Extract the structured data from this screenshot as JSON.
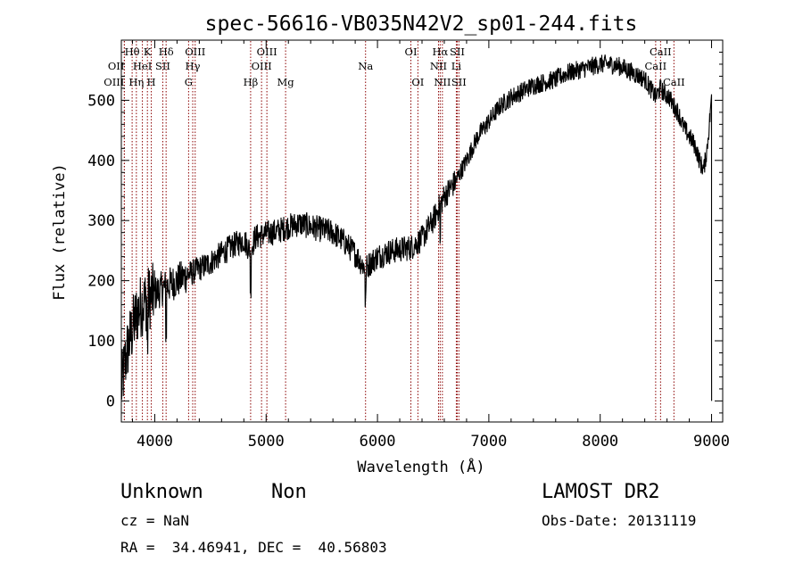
{
  "chart_data": {
    "type": "line",
    "title": "spec-56616-VB035N42V2_sp01-244.fits",
    "xlabel": "Wavelength (Å)",
    "ylabel": "Flux (relative)",
    "xlim": [
      3700,
      9100
    ],
    "ylim": [
      -35,
      600
    ],
    "xticks": [
      4000,
      5000,
      6000,
      7000,
      8000,
      9000
    ],
    "yticks": [
      0,
      100,
      200,
      300,
      400,
      500
    ],
    "grid": false,
    "line_color": "#000000",
    "marker_color": "#8b0000",
    "spectrum_anchors": {
      "x": [
        3700,
        3730,
        3760,
        3800,
        3840,
        3880,
        3930,
        3980,
        4050,
        4100,
        4200,
        4300,
        4400,
        4500,
        4600,
        4700,
        4800,
        4860,
        4900,
        5000,
        5100,
        5200,
        5300,
        5400,
        5500,
        5600,
        5700,
        5800,
        5890,
        5950,
        6000,
        6100,
        6200,
        6300,
        6400,
        6500,
        6560,
        6600,
        6700,
        6800,
        6900,
        7000,
        7100,
        7200,
        7300,
        7400,
        7500,
        7600,
        7700,
        7800,
        7900,
        8000,
        8100,
        8200,
        8300,
        8400,
        8450,
        8500,
        8540,
        8580,
        8620,
        8660,
        8700,
        8750,
        8800,
        8850,
        8900,
        8930,
        8960,
        8990,
        9000
      ],
      "y": [
        20,
        60,
        90,
        120,
        145,
        160,
        170,
        175,
        185,
        190,
        200,
        210,
        220,
        230,
        245,
        258,
        268,
        250,
        272,
        278,
        282,
        290,
        295,
        290,
        285,
        280,
        265,
        245,
        220,
        232,
        240,
        248,
        252,
        255,
        270,
        300,
        325,
        340,
        365,
        400,
        440,
        465,
        490,
        505,
        515,
        525,
        530,
        535,
        545,
        550,
        555,
        560,
        560,
        555,
        545,
        535,
        520,
        505,
        520,
        510,
        505,
        490,
        480,
        455,
        440,
        425,
        395,
        385,
        420,
        480,
        510
      ]
    },
    "lines": [
      {
        "label": "OII",
        "x": 3727,
        "row": 2,
        "align": "end"
      },
      {
        "label": "OIII",
        "x": 3727,
        "row": 3,
        "align": "end"
      },
      {
        "label": "Hθ",
        "x": 3797,
        "row": 1,
        "align": "middle"
      },
      {
        "label": "HeI",
        "x": 3889,
        "row": 2,
        "align": "middle"
      },
      {
        "label": "Hη",
        "x": 3835,
        "row": 3,
        "align": "middle"
      },
      {
        "label": "K",
        "x": 3934,
        "row": 1,
        "align": "middle"
      },
      {
        "label": "H",
        "x": 3969,
        "row": 3,
        "align": "middle"
      },
      {
        "label": "SII",
        "x": 4072,
        "row": 2,
        "align": "middle"
      },
      {
        "label": "Hδ",
        "x": 4102,
        "row": 1,
        "align": "middle"
      },
      {
        "label": "OIII",
        "x": 4363,
        "row": 1,
        "align": "middle"
      },
      {
        "label": "Hγ",
        "x": 4341,
        "row": 2,
        "align": "middle"
      },
      {
        "label": "G",
        "x": 4304,
        "row": 3,
        "align": "middle"
      },
      {
        "label": "Hβ",
        "x": 4861,
        "row": 3,
        "align": "middle"
      },
      {
        "label": "OIII",
        "x": 4959,
        "row": 2,
        "align": "middle"
      },
      {
        "label": "OIII",
        "x": 5007,
        "row": 1,
        "align": "middle"
      },
      {
        "label": "Mg",
        "x": 5175,
        "row": 3,
        "align": "middle"
      },
      {
        "label": "Na",
        "x": 5893,
        "row": 2,
        "align": "middle"
      },
      {
        "label": "OI",
        "x": 6300,
        "row": 1,
        "align": "middle"
      },
      {
        "label": "OI",
        "x": 6363,
        "row": 3,
        "align": "middle"
      },
      {
        "label": "NII",
        "x": 6548,
        "row": 2,
        "align": "middle"
      },
      {
        "label": "Hα",
        "x": 6563,
        "row": 1,
        "align": "middle"
      },
      {
        "label": "NII",
        "x": 6583,
        "row": 3,
        "align": "middle"
      },
      {
        "label": "Li",
        "x": 6708,
        "row": 2,
        "align": "middle"
      },
      {
        "label": "SII",
        "x": 6716,
        "row": 1,
        "align": "middle"
      },
      {
        "label": "SII",
        "x": 6731,
        "row": 3,
        "align": "middle"
      },
      {
        "label": "CaII",
        "x": 8498,
        "row": 2,
        "align": "middle"
      },
      {
        "label": "CaII",
        "x": 8542,
        "row": 1,
        "align": "middle"
      },
      {
        "label": "CaII",
        "x": 8662,
        "row": 3,
        "align": "middle"
      }
    ]
  },
  "footer": {
    "object_class": "Unknown",
    "subclass": "Non",
    "survey": "LAMOST DR2",
    "cz": "cz = NaN",
    "obs_date": "Obs-Date: 20131119",
    "radec": "RA =  34.46941, DEC =  40.56803"
  }
}
